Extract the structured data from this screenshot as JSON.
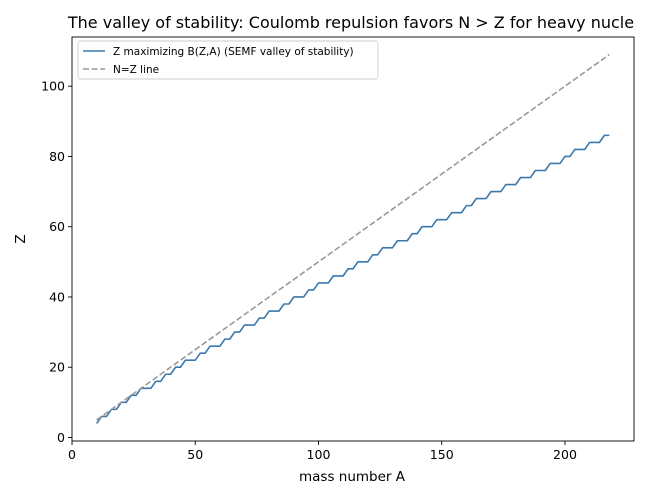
{
  "chart_data": {
    "type": "line",
    "title": "The valley of stability: Coulomb repulsion favors N > Z for heavy nucle",
    "xlabel": "mass number A",
    "ylabel": "Z",
    "xlim": [
      0,
      228
    ],
    "ylim": [
      -1,
      114
    ],
    "x_ticks": [
      0,
      50,
      100,
      150,
      200
    ],
    "y_ticks": [
      0,
      20,
      40,
      60,
      80,
      100
    ],
    "grid": false,
    "legend_position": "top-left",
    "series": [
      {
        "name": "Z maximizing B(Z,A) (SEMF valley of stability)",
        "color": "#3a78ad",
        "style": "solid",
        "x": [
          10,
          12,
          14,
          16,
          18,
          20,
          22,
          24,
          26,
          28,
          30,
          32,
          34,
          36,
          38,
          40,
          42,
          44,
          46,
          48,
          50,
          52,
          54,
          56,
          58,
          60,
          62,
          64,
          66,
          68,
          70,
          72,
          74,
          76,
          78,
          80,
          82,
          84,
          86,
          88,
          90,
          92,
          94,
          96,
          98,
          100,
          102,
          104,
          106,
          108,
          110,
          112,
          114,
          116,
          118,
          120,
          122,
          124,
          126,
          128,
          130,
          132,
          134,
          136,
          138,
          140,
          142,
          144,
          146,
          148,
          150,
          152,
          154,
          156,
          158,
          160,
          162,
          164,
          166,
          168,
          170,
          172,
          174,
          176,
          178,
          180,
          182,
          184,
          186,
          188,
          190,
          192,
          194,
          196,
          198,
          200,
          202,
          204,
          206,
          208,
          210,
          212,
          214,
          216,
          218
        ],
        "y": [
          4,
          6,
          6,
          8,
          8,
          10,
          10,
          12,
          12,
          14,
          14,
          14,
          16,
          16,
          18,
          18,
          20,
          20,
          22,
          22,
          22,
          24,
          24,
          26,
          26,
          26,
          28,
          28,
          30,
          30,
          32,
          32,
          32,
          34,
          34,
          36,
          36,
          36,
          38,
          38,
          40,
          40,
          40,
          42,
          42,
          44,
          44,
          44,
          46,
          46,
          46,
          48,
          48,
          50,
          50,
          50,
          52,
          52,
          54,
          54,
          54,
          56,
          56,
          56,
          58,
          58,
          60,
          60,
          60,
          62,
          62,
          62,
          64,
          64,
          64,
          66,
          66,
          68,
          68,
          68,
          70,
          70,
          70,
          72,
          72,
          72,
          74,
          74,
          74,
          76,
          76,
          76,
          78,
          78,
          78,
          80,
          80,
          82,
          82,
          82,
          84,
          84,
          84,
          86,
          86
        ]
      },
      {
        "name": "N=Z line",
        "color": "#999999",
        "style": "dashed",
        "x": [
          10,
          218
        ],
        "y": [
          5,
          109
        ]
      }
    ]
  }
}
